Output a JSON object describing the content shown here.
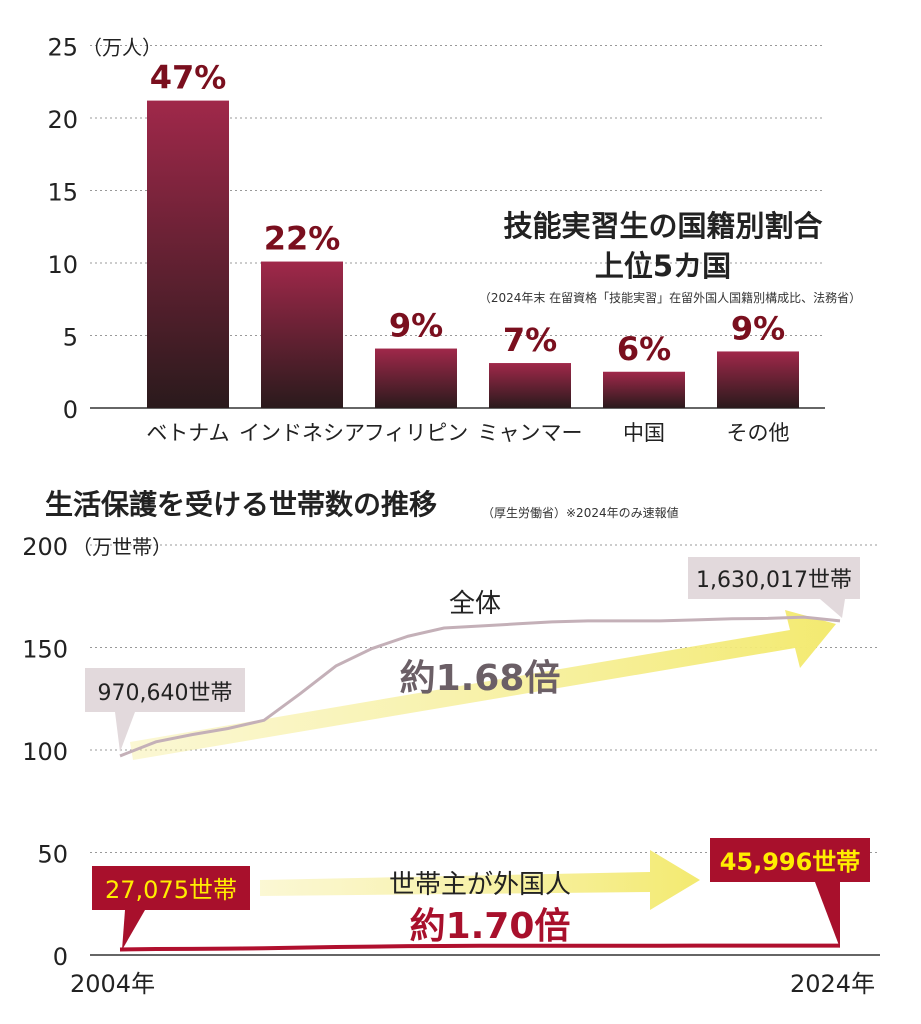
{
  "chart_data": [
    {
      "type": "bar",
      "title": "技能実習生の国籍別割合",
      "subtitle": "上位5カ国",
      "source": "（2024年末 在留資格「技能実習」在留外国人国籍別構成比、法務省）",
      "ylabel": "（万人）",
      "ylim": [
        0,
        25
      ],
      "yticks": [
        0,
        5,
        10,
        15,
        20,
        25
      ],
      "categories": [
        "ベトナム",
        "インドネシア",
        "フィリピン",
        "ミャンマー",
        "中国",
        "その他"
      ],
      "values": [
        21.2,
        10.1,
        4.1,
        3.1,
        2.5,
        3.9
      ],
      "data_labels": [
        "47%",
        "22%",
        "9%",
        "7%",
        "6%",
        "9%"
      ],
      "colors": {
        "top": "#a0284a",
        "bottom": "#2a1a1c",
        "label": "#7a0f1e"
      }
    },
    {
      "type": "line",
      "title": "生活保護を受ける世帯数の推移",
      "source": "（厚生労働省）",
      "note": "※2024年のみ速報値",
      "ylabel": "（万世帯）",
      "ylim": [
        0,
        200
      ],
      "yticks": [
        0,
        50,
        100,
        150,
        200
      ],
      "xlabels": [
        "2004年",
        "2024年"
      ],
      "x": [
        2004,
        2005,
        2006,
        2007,
        2008,
        2009,
        2010,
        2011,
        2012,
        2013,
        2014,
        2015,
        2016,
        2017,
        2018,
        2019,
        2020,
        2021,
        2022,
        2023,
        2024
      ],
      "series": [
        {
          "name": "全体",
          "color": "#c4b0b8",
          "values": [
            97.1,
            104,
            107.5,
            110.5,
            114.5,
            127.4,
            141,
            149.5,
            155.5,
            159.5,
            160.5,
            161.5,
            162.5,
            163,
            163,
            163,
            163.5,
            164,
            164.2,
            164.8,
            163.0
          ],
          "start_label": "970,640世帯",
          "end_label": "1,630,017世帯",
          "growth": "約1.68倍",
          "growth_prefix": "約",
          "growth_value": "1.68倍"
        },
        {
          "name": "世帯主が外国人",
          "color": "#b0102e",
          "values": [
            2.7,
            2.9,
            3.0,
            3.1,
            3.3,
            3.6,
            3.9,
            4.1,
            4.3,
            4.4,
            4.5,
            4.5,
            4.5,
            4.5,
            4.5,
            4.5,
            4.6,
            4.6,
            4.6,
            4.6,
            4.6
          ],
          "start_label": "27,075世帯",
          "end_label": "45,996世帯",
          "growth": "約1.70倍",
          "growth_prefix": "約",
          "growth_value": "1.70倍"
        }
      ]
    }
  ]
}
